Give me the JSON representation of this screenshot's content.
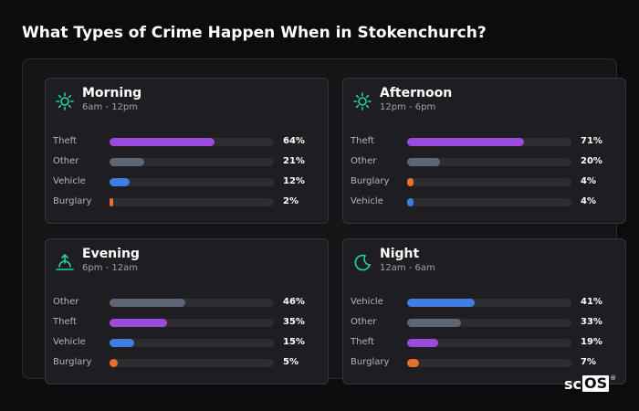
{
  "title": "What Types of Crime Happen When in Stokenchurch?",
  "logo": {
    "text_a": "sc",
    "text_b": "OS",
    "mark": "®"
  },
  "colors": {
    "Theft": "#9b4bdc",
    "Other": "#5e6575",
    "Vehicle": "#3f7de0",
    "Burglary": "#e8702a",
    "icon": "#1fd6a4"
  },
  "chart_data": [
    {
      "type": "bar",
      "panel": "Morning",
      "subtitle": "6am - 12pm",
      "icon": "sun-icon",
      "xlim": [
        0,
        100
      ],
      "categories": [
        "Theft",
        "Other",
        "Vehicle",
        "Burglary"
      ],
      "values": [
        64,
        21,
        12,
        2
      ],
      "labels": [
        "64%",
        "21%",
        "12%",
        "2%"
      ]
    },
    {
      "type": "bar",
      "panel": "Afternoon",
      "subtitle": "12pm - 6pm",
      "icon": "sun-icon",
      "xlim": [
        0,
        100
      ],
      "categories": [
        "Theft",
        "Other",
        "Burglary",
        "Vehicle"
      ],
      "values": [
        71,
        20,
        4,
        4
      ],
      "labels": [
        "71%",
        "20%",
        "4%",
        "4%"
      ]
    },
    {
      "type": "bar",
      "panel": "Evening",
      "subtitle": "6pm - 12am",
      "icon": "sunset-icon",
      "xlim": [
        0,
        100
      ],
      "categories": [
        "Other",
        "Theft",
        "Vehicle",
        "Burglary"
      ],
      "values": [
        46,
        35,
        15,
        5
      ],
      "labels": [
        "46%",
        "35%",
        "15%",
        "5%"
      ]
    },
    {
      "type": "bar",
      "panel": "Night",
      "subtitle": "12am - 6am",
      "icon": "moon-icon",
      "xlim": [
        0,
        100
      ],
      "categories": [
        "Vehicle",
        "Other",
        "Theft",
        "Burglary"
      ],
      "values": [
        41,
        33,
        19,
        7
      ],
      "labels": [
        "41%",
        "33%",
        "19%",
        "7%"
      ]
    }
  ]
}
